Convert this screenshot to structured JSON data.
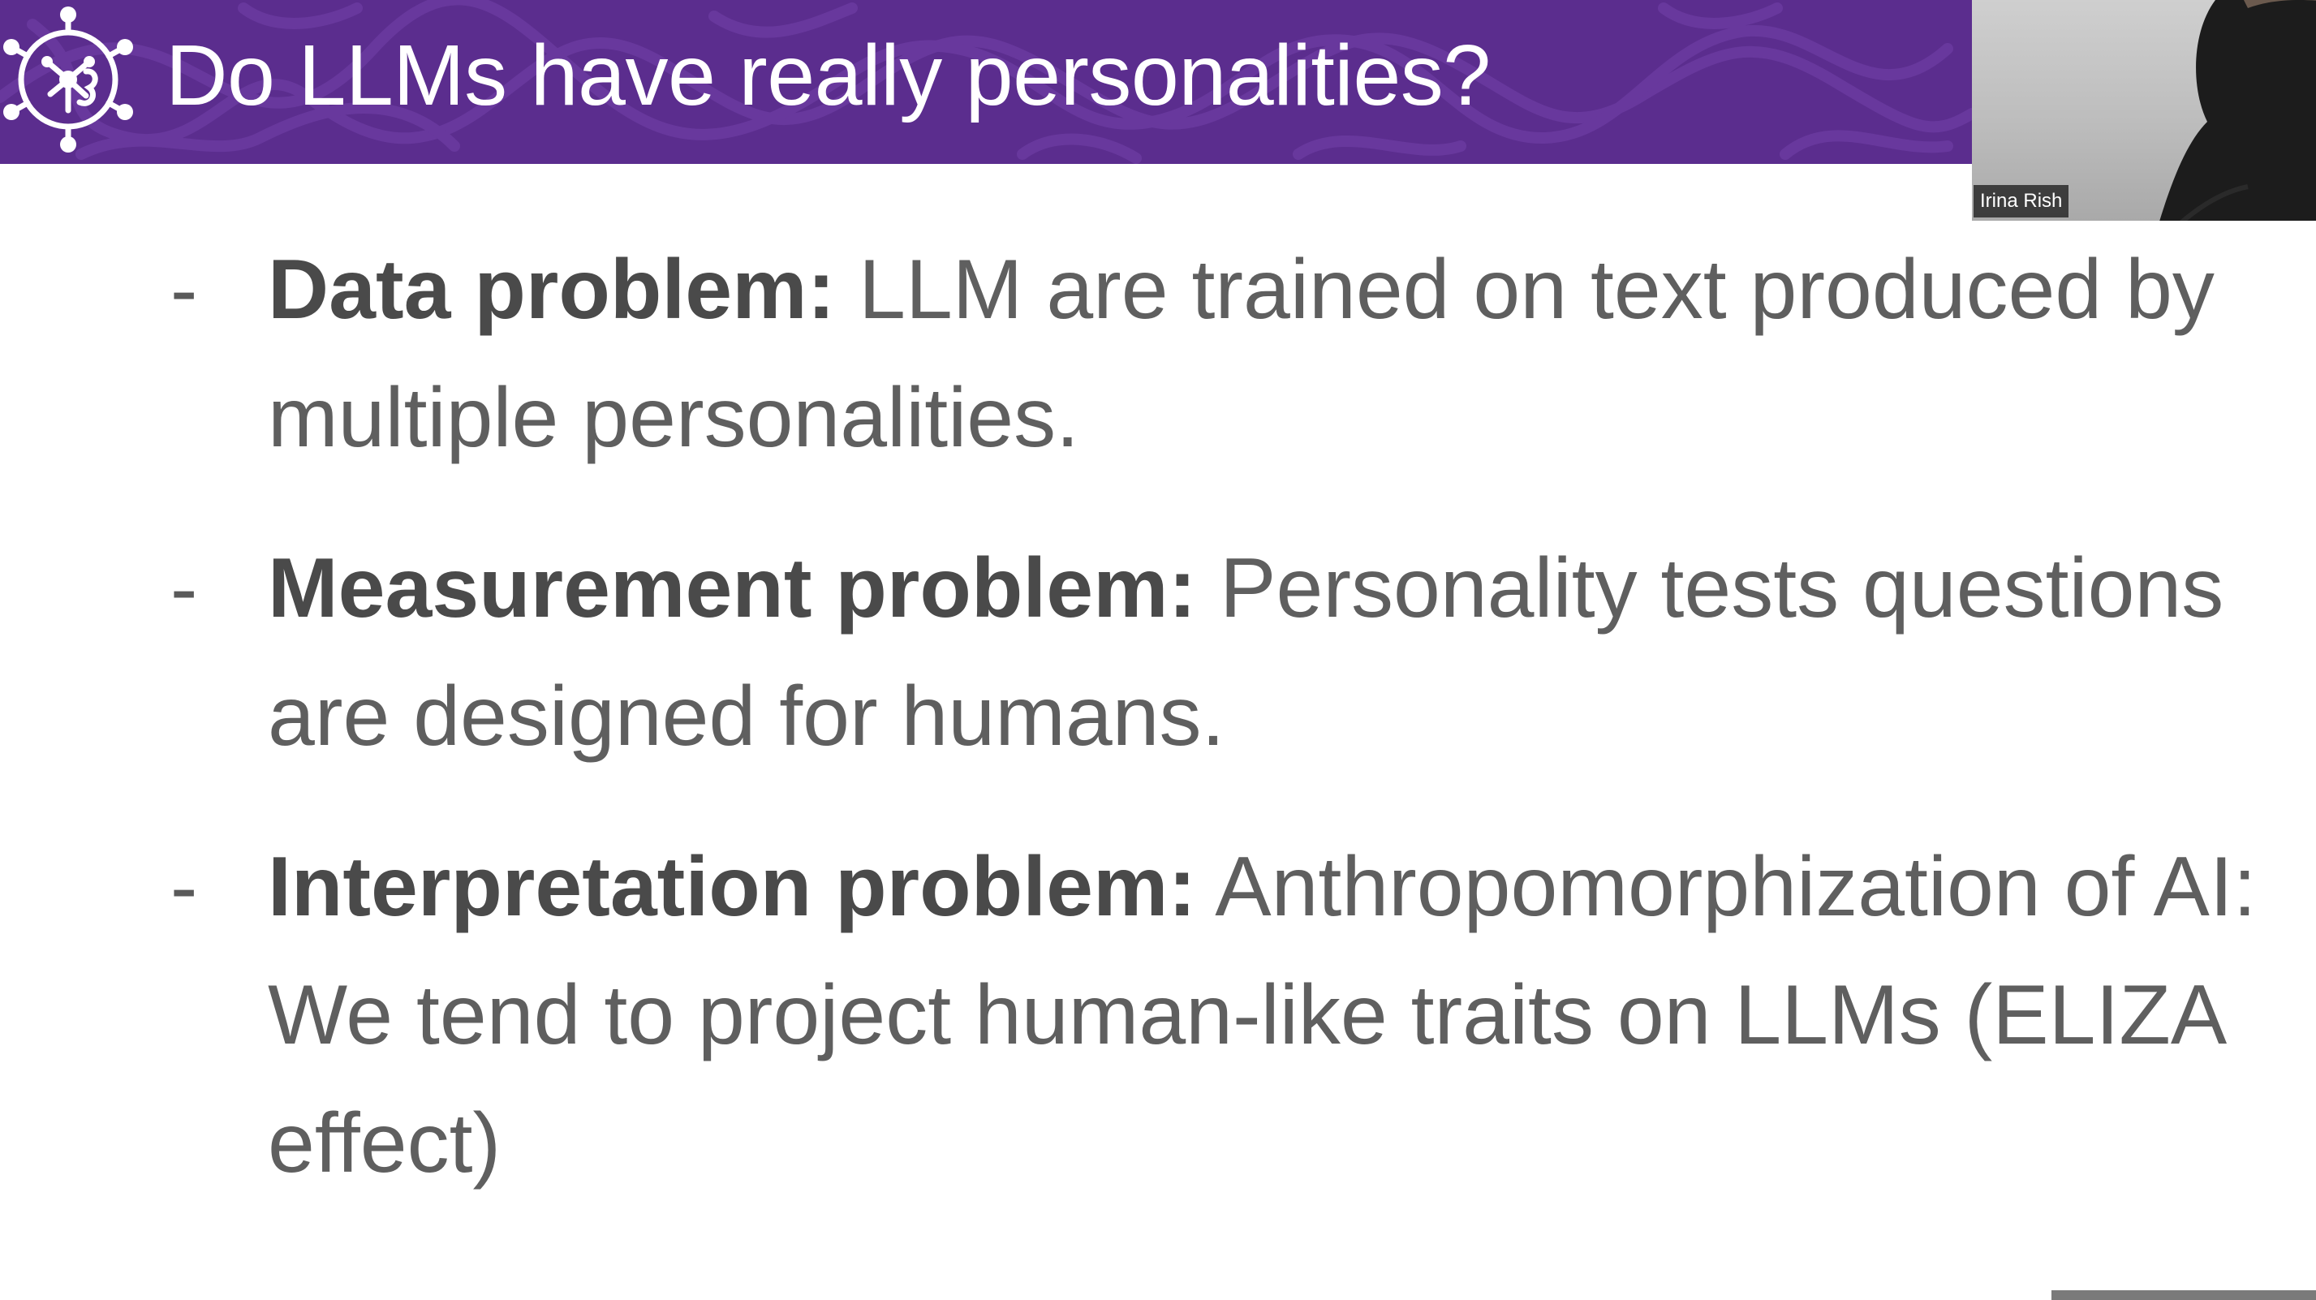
{
  "slide": {
    "title": "Do LLMs have really personalities?",
    "logo_icon": "network-brain-logo-icon",
    "bullets": [
      {
        "marker": "-",
        "bold": "Data problem:",
        "text": " LLM are trained on text produced by multiple personalities."
      },
      {
        "marker": "-",
        "bold": "Measurement problem:",
        "text": " Personality tests questions are designed for humans."
      },
      {
        "marker": "-",
        "bold": "Interpretation problem:",
        "text": " Anthropomorphization of AI: We tend to project human-like traits on LLMs (ELIZA effect)"
      }
    ]
  },
  "video_tile": {
    "participant_name": "Irina Rish"
  },
  "colors": {
    "header_purple": "#5b2d8e",
    "title_text": "#ffffff",
    "body_text": "#5f5f5f",
    "bold_text": "#4a4a4a"
  }
}
